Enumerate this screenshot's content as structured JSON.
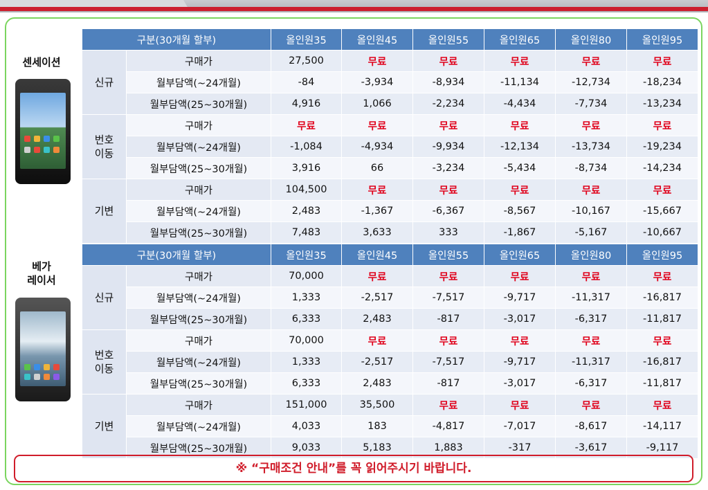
{
  "header_row": [
    "구분(30개월 할부)",
    "올인원35",
    "올인원45",
    "올인원55",
    "올인원65",
    "올인원80",
    "올인원95"
  ],
  "sections": [
    {
      "phone_name": "센세이션",
      "groups": [
        {
          "label": "신규",
          "rows": [
            {
              "label": "구매가",
              "values": [
                "27,500",
                "무료",
                "무료",
                "무료",
                "무료",
                "무료"
              ]
            },
            {
              "label": "월부담액(~24개월)",
              "values": [
                "-84",
                "-3,934",
                "-8,934",
                "-11,134",
                "-12,734",
                "-18,234"
              ]
            },
            {
              "label": "월부담액(25~30개월)",
              "values": [
                "4,916",
                "1,066",
                "-2,234",
                "-4,434",
                "-7,734",
                "-13,234"
              ]
            }
          ]
        },
        {
          "label": "번호\n이동",
          "rows": [
            {
              "label": "구매가",
              "values": [
                "무료",
                "무료",
                "무료",
                "무료",
                "무료",
                "무료"
              ]
            },
            {
              "label": "월부담액(~24개월)",
              "values": [
                "-1,084",
                "-4,934",
                "-9,934",
                "-12,134",
                "-13,734",
                "-19,234"
              ]
            },
            {
              "label": "월부담액(25~30개월)",
              "values": [
                "3,916",
                "66",
                "-3,234",
                "-5,434",
                "-8,734",
                "-14,234"
              ]
            }
          ]
        },
        {
          "label": "기변",
          "rows": [
            {
              "label": "구매가",
              "values": [
                "104,500",
                "무료",
                "무료",
                "무료",
                "무료",
                "무료"
              ]
            },
            {
              "label": "월부담액(~24개월)",
              "values": [
                "2,483",
                "-1,367",
                "-6,367",
                "-8,567",
                "-10,167",
                "-15,667"
              ]
            },
            {
              "label": "월부담액(25~30개월)",
              "values": [
                "7,483",
                "3,633",
                "333",
                "-1,867",
                "-5,167",
                "-10,667"
              ]
            }
          ]
        }
      ]
    },
    {
      "phone_name": "베가\n레이서",
      "groups": [
        {
          "label": "신규",
          "rows": [
            {
              "label": "구매가",
              "values": [
                "70,000",
                "무료",
                "무료",
                "무료",
                "무료",
                "무료"
              ]
            },
            {
              "label": "월부담액(~24개월)",
              "values": [
                "1,333",
                "-2,517",
                "-7,517",
                "-9,717",
                "-11,317",
                "-16,817"
              ]
            },
            {
              "label": "월부담액(25~30개월)",
              "values": [
                "6,333",
                "2,483",
                "-817",
                "-3,017",
                "-6,317",
                "-11,817"
              ]
            }
          ]
        },
        {
          "label": "번호\n이동",
          "rows": [
            {
              "label": "구매가",
              "values": [
                "70,000",
                "무료",
                "무료",
                "무료",
                "무료",
                "무료"
              ]
            },
            {
              "label": "월부담액(~24개월)",
              "values": [
                "1,333",
                "-2,517",
                "-7,517",
                "-9,717",
                "-11,317",
                "-16,817"
              ]
            },
            {
              "label": "월부담액(25~30개월)",
              "values": [
                "6,333",
                "2,483",
                "-817",
                "-3,017",
                "-6,317",
                "-11,817"
              ]
            }
          ]
        },
        {
          "label": "기변",
          "rows": [
            {
              "label": "구매가",
              "values": [
                "151,000",
                "35,500",
                "무료",
                "무료",
                "무료",
                "무료"
              ]
            },
            {
              "label": "월부담액(~24개월)",
              "values": [
                "4,033",
                "183",
                "-4,817",
                "-7,017",
                "-8,617",
                "-14,117"
              ]
            },
            {
              "label": "월부담액(25~30개월)",
              "values": [
                "9,033",
                "5,183",
                "1,883",
                "-317",
                "-3,617",
                "-9,117"
              ]
            }
          ]
        }
      ]
    }
  ],
  "free_text": "무료",
  "notice": "※ “구매조건 안내”를 꼭 읽어주시기 바랍니다.",
  "colors": {
    "header": "#4f81bd",
    "free": "#e0001a",
    "frame": "#7bd55f",
    "notice": "#d01c2a"
  }
}
